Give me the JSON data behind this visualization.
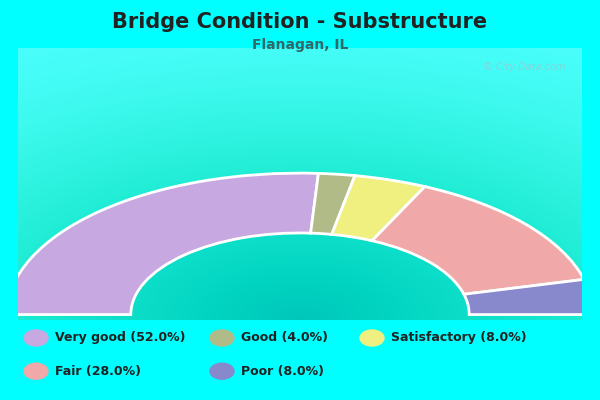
{
  "title": "Bridge Condition - Substructure",
  "subtitle": "Flanagan, IL",
  "background_color": "#00FFFF",
  "chart_bg_color_center": "#e8f0e0",
  "chart_bg_color_edge": "#c8dcc0",
  "watermark": "© City-Data.com",
  "segments": [
    {
      "label": "Very good (52.0%)",
      "value": 52.0,
      "color": "#c8a8e0"
    },
    {
      "label": "Good (4.0%)",
      "value": 4.0,
      "color": "#b0bb88"
    },
    {
      "label": "Satisfactory (8.0%)",
      "value": 8.0,
      "color": "#f0f080"
    },
    {
      "label": "Fair (28.0%)",
      "value": 28.0,
      "color": "#f0a8a8"
    },
    {
      "label": "Poor (8.0%)",
      "value": 8.0,
      "color": "#8888cc"
    }
  ],
  "legend_colors": [
    "#c8a8e0",
    "#b0bb88",
    "#f0f080",
    "#f0a8a8",
    "#8888cc"
  ],
  "legend_labels": [
    "Very good (52.0%)",
    "Good (4.0%)",
    "Satisfactory (8.0%)",
    "Fair (28.0%)",
    "Poor (8.0%)"
  ],
  "title_fontsize": 15,
  "subtitle_fontsize": 10,
  "title_color": "#222222",
  "subtitle_color": "#336666",
  "legend_fontsize": 9,
  "legend_text_color": "#222222"
}
